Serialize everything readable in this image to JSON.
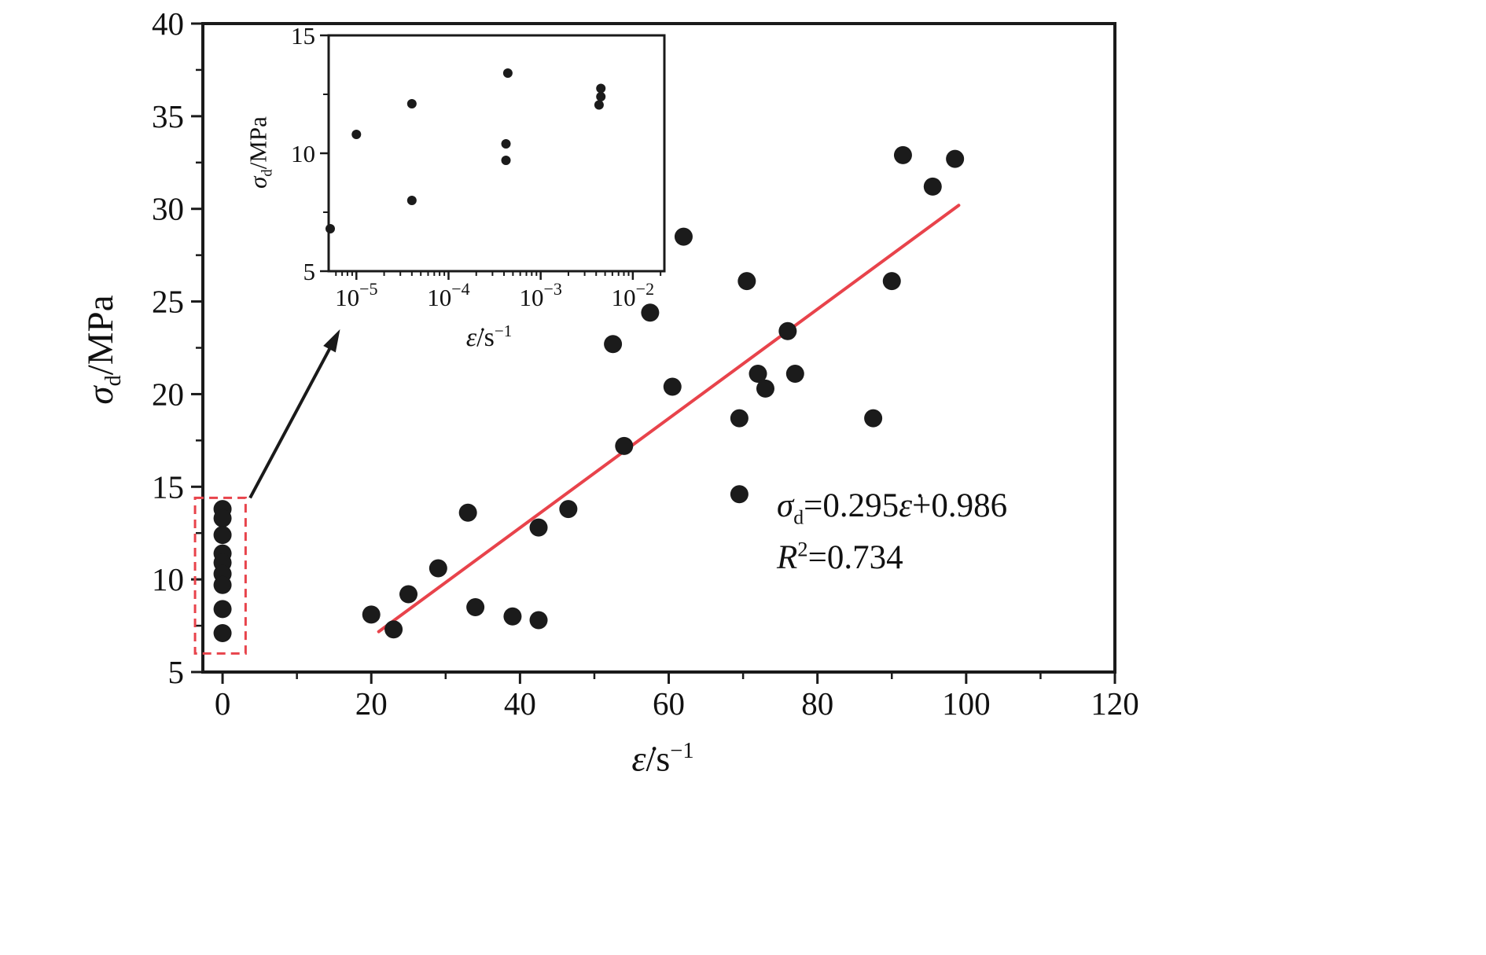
{
  "chart_data": [
    {
      "id": "main",
      "type": "scatter",
      "xlabel": "ε̇/s⁻¹",
      "ylabel": "σd/MPa",
      "xlabel_parts": {
        "sym": "ε̇",
        "rest": "/s",
        "sup": "−1"
      },
      "ylabel_parts": {
        "sym": "σ",
        "sub": "d",
        "rest": "/MPa"
      },
      "xlim": [
        0,
        120
      ],
      "ylim": [
        5,
        40
      ],
      "xticks": [
        0,
        20,
        40,
        60,
        80,
        100,
        120
      ],
      "yticks": [
        5,
        10,
        15,
        20,
        25,
        30,
        35,
        40
      ],
      "x_minor_step": 10,
      "y_minor_step": 2.5,
      "grid": false,
      "point_color": "#1b1b1b",
      "points": [
        [
          0,
          13.8
        ],
        [
          0,
          13.3
        ],
        [
          0,
          12.4
        ],
        [
          0,
          11.4
        ],
        [
          0,
          10.9
        ],
        [
          0,
          10.3
        ],
        [
          0,
          9.7
        ],
        [
          0,
          8.4
        ],
        [
          0,
          7.1
        ],
        [
          20,
          8.1
        ],
        [
          23,
          7.3
        ],
        [
          25,
          9.2
        ],
        [
          29,
          10.6
        ],
        [
          33,
          13.6
        ],
        [
          34,
          8.5
        ],
        [
          39,
          8.0
        ],
        [
          42.5,
          7.8
        ],
        [
          42.5,
          12.8
        ],
        [
          46.5,
          13.8
        ],
        [
          52.5,
          22.7
        ],
        [
          54,
          17.2
        ],
        [
          57.5,
          24.4
        ],
        [
          60.5,
          20.4
        ],
        [
          62,
          28.5
        ],
        [
          69.5,
          14.6
        ],
        [
          69.5,
          18.7
        ],
        [
          70.5,
          26.1
        ],
        [
          72,
          21.1
        ],
        [
          73,
          20.3
        ],
        [
          76,
          23.4
        ],
        [
          77,
          21.1
        ],
        [
          87.5,
          18.7
        ],
        [
          90,
          26.1
        ],
        [
          91.5,
          32.9
        ],
        [
          95.5,
          31.2
        ],
        [
          98.5,
          32.7
        ]
      ],
      "fit": {
        "slope": 0.295,
        "intercept": 0.986,
        "r2": 0.734,
        "x_range": [
          21,
          99
        ],
        "color": "#e8434b",
        "equation_text": "σd=0.295ε̇+0.986",
        "r2_text": "R²=0.734"
      },
      "annotation": {
        "sigma": "σ",
        "sigma_sub": "d",
        "eq1": "=0.295",
        "eps": "ε̇",
        "eq2": "+0.986",
        "r": "R",
        "r_sup": "2",
        "r_val": "=0.734"
      },
      "highlight_box": {
        "x": [
          -3.7,
          3.1
        ],
        "y": [
          6.0,
          14.4
        ],
        "color": "#e8434b",
        "style": "dashed"
      },
      "arrow": {
        "from": [
          3.7,
          14.4
        ],
        "to": [
          15.8,
          23.5
        ]
      }
    },
    {
      "id": "inset",
      "type": "scatter",
      "xscale": "log",
      "xlabel": "ε̇/s⁻¹",
      "ylabel": "σd/MPa",
      "xlabel_parts": {
        "sym": "ε̇",
        "rest": "/s",
        "sup": "−1"
      },
      "ylabel_parts": {
        "sym": "σ",
        "sub": "d",
        "rest": "/MPa"
      },
      "xlim": [
        5e-06,
        0.022
      ],
      "ylim": [
        5,
        15
      ],
      "yticks": [
        5,
        10,
        15
      ],
      "y_minor_step": 2.5,
      "xticks": [
        1e-05,
        0.0001,
        0.001,
        0.01
      ],
      "xtick_base": "10",
      "xtick_sup": [
        "−5",
        "−4",
        "−3",
        "−2"
      ],
      "point_color": "#1b1b1b",
      "points": [
        [
          5.2e-06,
          6.8
        ],
        [
          1e-05,
          10.8
        ],
        [
          4e-05,
          12.1
        ],
        [
          4e-05,
          8.0
        ],
        [
          0.00044,
          13.4
        ],
        [
          0.00042,
          10.4
        ],
        [
          0.00042,
          9.7
        ],
        [
          0.0045,
          12.75
        ],
        [
          0.0045,
          12.4
        ],
        [
          0.0043,
          12.05
        ]
      ]
    }
  ]
}
